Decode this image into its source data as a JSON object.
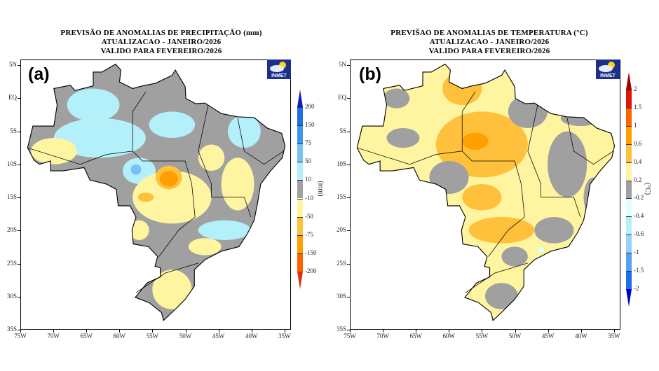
{
  "panels": [
    {
      "label": "(a)",
      "title_lines": [
        "PREVISÃO DE ANOMALIAS DE PRECIPITAÇÃO (mm)",
        "ATUALIZACAO - JANEIRO/2026",
        "VALIDO PARA FEVEREIRO/2026"
      ],
      "logo_text": "INMET",
      "colorbar": {
        "unit": "(mm)",
        "labels": [
          "200",
          "150",
          "75",
          "50",
          "10",
          "-10",
          "-50",
          "-75",
          "-150",
          "-200"
        ],
        "colors": [
          "#0a1ec8",
          "#1e6ee6",
          "#3c96f0",
          "#78c0f8",
          "#b4f0fa",
          "#a0a0a0",
          "#fff5a0",
          "#ffc03c",
          "#ffa000",
          "#ff6000",
          "#e12f0a"
        ]
      }
    },
    {
      "label": "(b)",
      "title_lines": [
        "PREVIŠAO DE ANOMALIAS DE TEMPERATURA (°C)",
        "ATUALIZACAO - JANEIRO/2026",
        "VALIDO PARA FEVEREIRO/2026"
      ],
      "logo_text": "INMET",
      "colorbar": {
        "unit": "(°C)",
        "labels": [
          "2",
          "1.5",
          "1",
          "0.6",
          "0.4",
          "0.2",
          "-0.2",
          "-0.4",
          "-0.6",
          "-1",
          "-1.5",
          "-2"
        ],
        "colors": [
          "#a00000",
          "#e01400",
          "#ff6400",
          "#ffa000",
          "#ffc03c",
          "#fff5a0",
          "#a0a0a0",
          "#e0ffff",
          "#b4f0fa",
          "#96d2fa",
          "#50a5f5",
          "#1e6ee6",
          "#0000c8"
        ]
      }
    }
  ],
  "axes": {
    "lat_labels": [
      "5N",
      "EQ",
      "5S",
      "10S",
      "15S",
      "20S",
      "25S",
      "30S",
      "35S"
    ],
    "lon_labels": [
      "75W",
      "70W",
      "65W",
      "60W",
      "55W",
      "50W",
      "45W",
      "40W",
      "35W"
    ]
  }
}
